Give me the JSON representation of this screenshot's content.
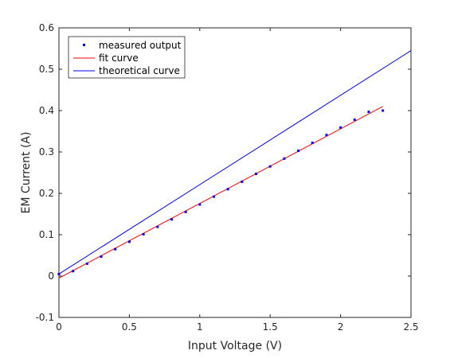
{
  "chart_data": {
    "type": "line",
    "title": "",
    "xlabel": "Input Voltage (V)",
    "ylabel": "EM Current (A)",
    "xlim": [
      0,
      2.5
    ],
    "ylim": [
      -0.1,
      0.6
    ],
    "xticks": [
      0,
      0.5,
      1,
      1.5,
      2,
      2.5
    ],
    "xtick_labels": [
      "0",
      "0.5",
      "1",
      "1.5",
      "2",
      "2.5"
    ],
    "yticks": [
      -0.1,
      0,
      0.1,
      0.2,
      0.3,
      0.4,
      0.5,
      0.6
    ],
    "ytick_labels": [
      "-0.1",
      "0",
      "0.1",
      "0.2",
      "0.3",
      "0.4",
      "0.5",
      "0.6"
    ],
    "grid": false,
    "legend_position": "top-left",
    "series": [
      {
        "name": "measured output",
        "style": "markers",
        "color": "#0000ff",
        "x": [
          0,
          0.1,
          0.2,
          0.3,
          0.4,
          0.5,
          0.6,
          0.7,
          0.8,
          0.9,
          1.0,
          1.1,
          1.2,
          1.3,
          1.4,
          1.5,
          1.6,
          1.7,
          1.8,
          1.9,
          2.0,
          2.1,
          2.2,
          2.3
        ],
        "y": [
          0.005,
          0.012,
          0.03,
          0.047,
          0.065,
          0.083,
          0.101,
          0.119,
          0.137,
          0.155,
          0.173,
          0.192,
          0.21,
          0.228,
          0.247,
          0.265,
          0.284,
          0.303,
          0.322,
          0.341,
          0.359,
          0.378,
          0.397,
          0.4
        ]
      },
      {
        "name": "fit curve",
        "style": "line",
        "color": "#ff0000",
        "x": [
          0,
          2.3
        ],
        "y": [
          -0.005,
          0.41
        ]
      },
      {
        "name": "theoretical curve",
        "style": "line",
        "color": "#0000ff",
        "x": [
          0,
          2.5
        ],
        "y": [
          0.005,
          0.545
        ]
      }
    ]
  }
}
